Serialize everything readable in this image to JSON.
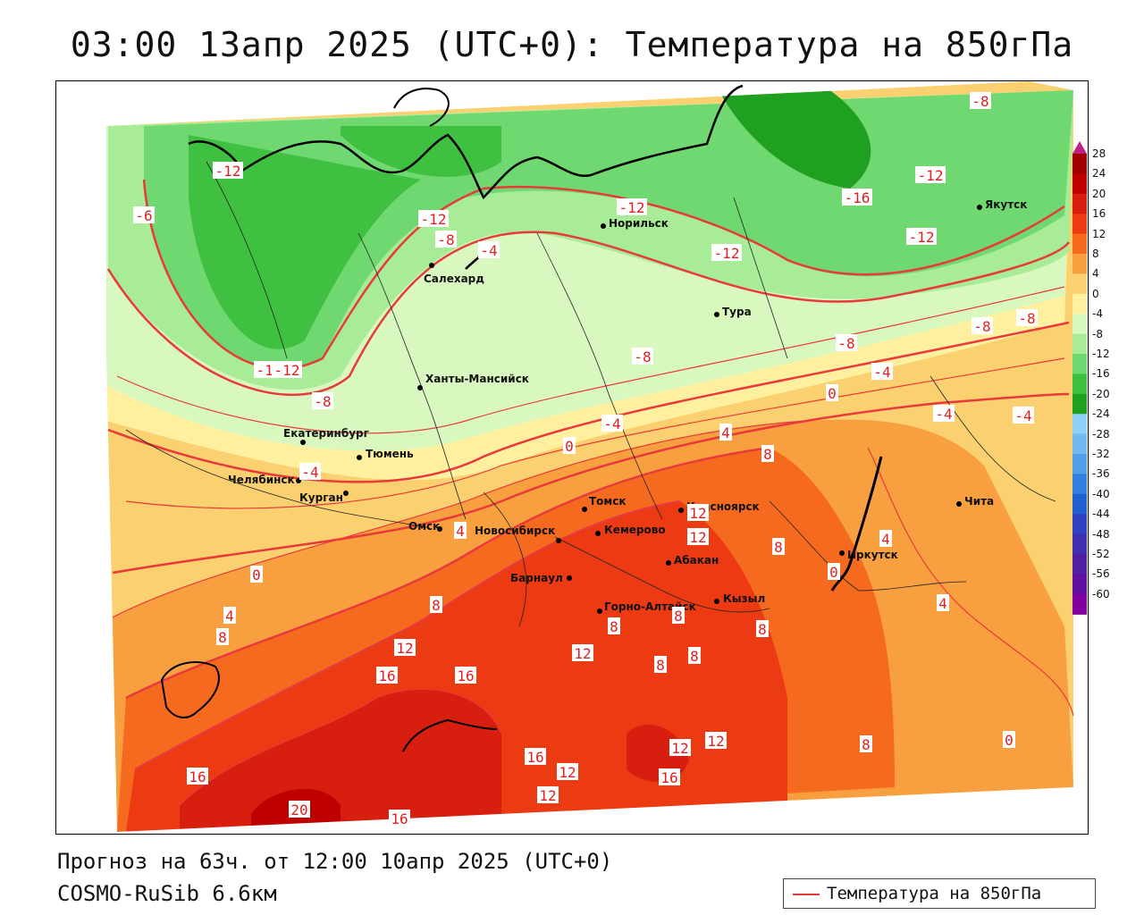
{
  "title": "03:00 13апр 2025 (UTC+0): Температура на 850гПа",
  "footer": {
    "forecast": "Прогноз на 63ч. от 12:00 10апр 2025 (UTC+0)",
    "model": "COSMO-RuSib 6.6км"
  },
  "legend": {
    "label": "Температура на 850гПа",
    "line_color": "#e83a3a"
  },
  "colorbar": {
    "ticks": [
      "28",
      "24",
      "20",
      "16",
      "12",
      "8",
      "4",
      "0",
      "-4",
      "-8",
      "-12",
      "-16",
      "-20",
      "-24",
      "-28",
      "-32",
      "-36",
      "-40",
      "-44",
      "-48",
      "-52",
      "-56",
      "-60"
    ],
    "colors": [
      "#a00000",
      "#c00000",
      "#d81e0e",
      "#ec3a12",
      "#f56a1e",
      "#f8a040",
      "#fbd070",
      "#fff0a0",
      "#d8f8c0",
      "#a8ec98",
      "#70d870",
      "#40c040",
      "#20a020",
      "#90d0f8",
      "#70b8f0",
      "#50a0e8",
      "#3080e0",
      "#2060d0",
      "#3040c0",
      "#4030b0",
      "#5020a0",
      "#6010a0",
      "#8000a0"
    ]
  },
  "cities": [
    {
      "name": "Норильск"
    },
    {
      "name": "Якутск"
    },
    {
      "name": "Салехард"
    },
    {
      "name": "Тура"
    },
    {
      "name": "Ханты-Мансийск"
    },
    {
      "name": "Екатеринбург"
    },
    {
      "name": "Тюмень"
    },
    {
      "name": "Челябинск"
    },
    {
      "name": "Курган"
    },
    {
      "name": "Омск"
    },
    {
      "name": "Томск"
    },
    {
      "name": "Красноярск"
    },
    {
      "name": "Новосибирск"
    },
    {
      "name": "Кемерово"
    },
    {
      "name": "Абакан"
    },
    {
      "name": "Барнаул"
    },
    {
      "name": "Горно-Алтайск"
    },
    {
      "name": "Кызыл"
    },
    {
      "name": "Иркутск"
    },
    {
      "name": "Чита"
    }
  ],
  "isotherm_labels": [
    "-8",
    "-12",
    "-6",
    "-12",
    "-8",
    "-12",
    "-12",
    "-16",
    "-12",
    "-12",
    "-4",
    "-8",
    "-12",
    "-12",
    "-8",
    "-8",
    "-8",
    "-4",
    "-8",
    "-4",
    "0",
    "-4",
    "0",
    "4",
    "-4",
    "8",
    "0",
    "-4",
    "4",
    "4",
    "12",
    "12",
    "8",
    "0",
    "4",
    "8",
    "4",
    "8",
    "12",
    "16",
    "16",
    "8",
    "8",
    "8",
    "8",
    "8",
    "12",
    "12",
    "8",
    "12",
    "16",
    "12",
    "16",
    "12",
    "16",
    "20",
    "16",
    "0"
  ]
}
